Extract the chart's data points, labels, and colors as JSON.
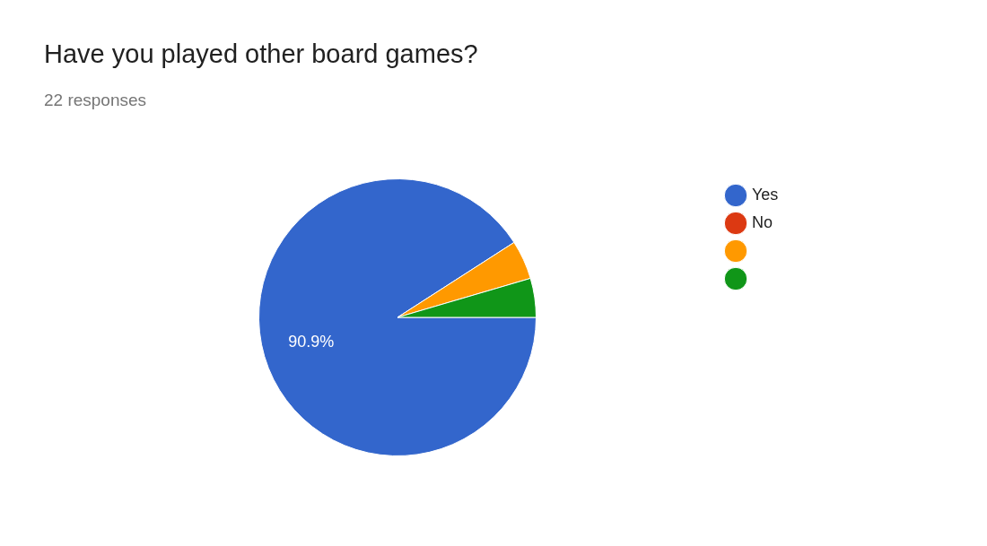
{
  "chart_data": {
    "type": "pie",
    "title": "Have you played other board games?",
    "subtitle": "22 responses",
    "categories": [
      "Yes",
      "No",
      null,
      null
    ],
    "values": [
      90.9,
      0,
      4.55,
      4.55
    ],
    "colors": [
      "#3366cc",
      "#dc3912",
      "#ff9900",
      "#109618"
    ],
    "value_labels": [
      "90.9%",
      null,
      null,
      null
    ],
    "legend": "right"
  }
}
